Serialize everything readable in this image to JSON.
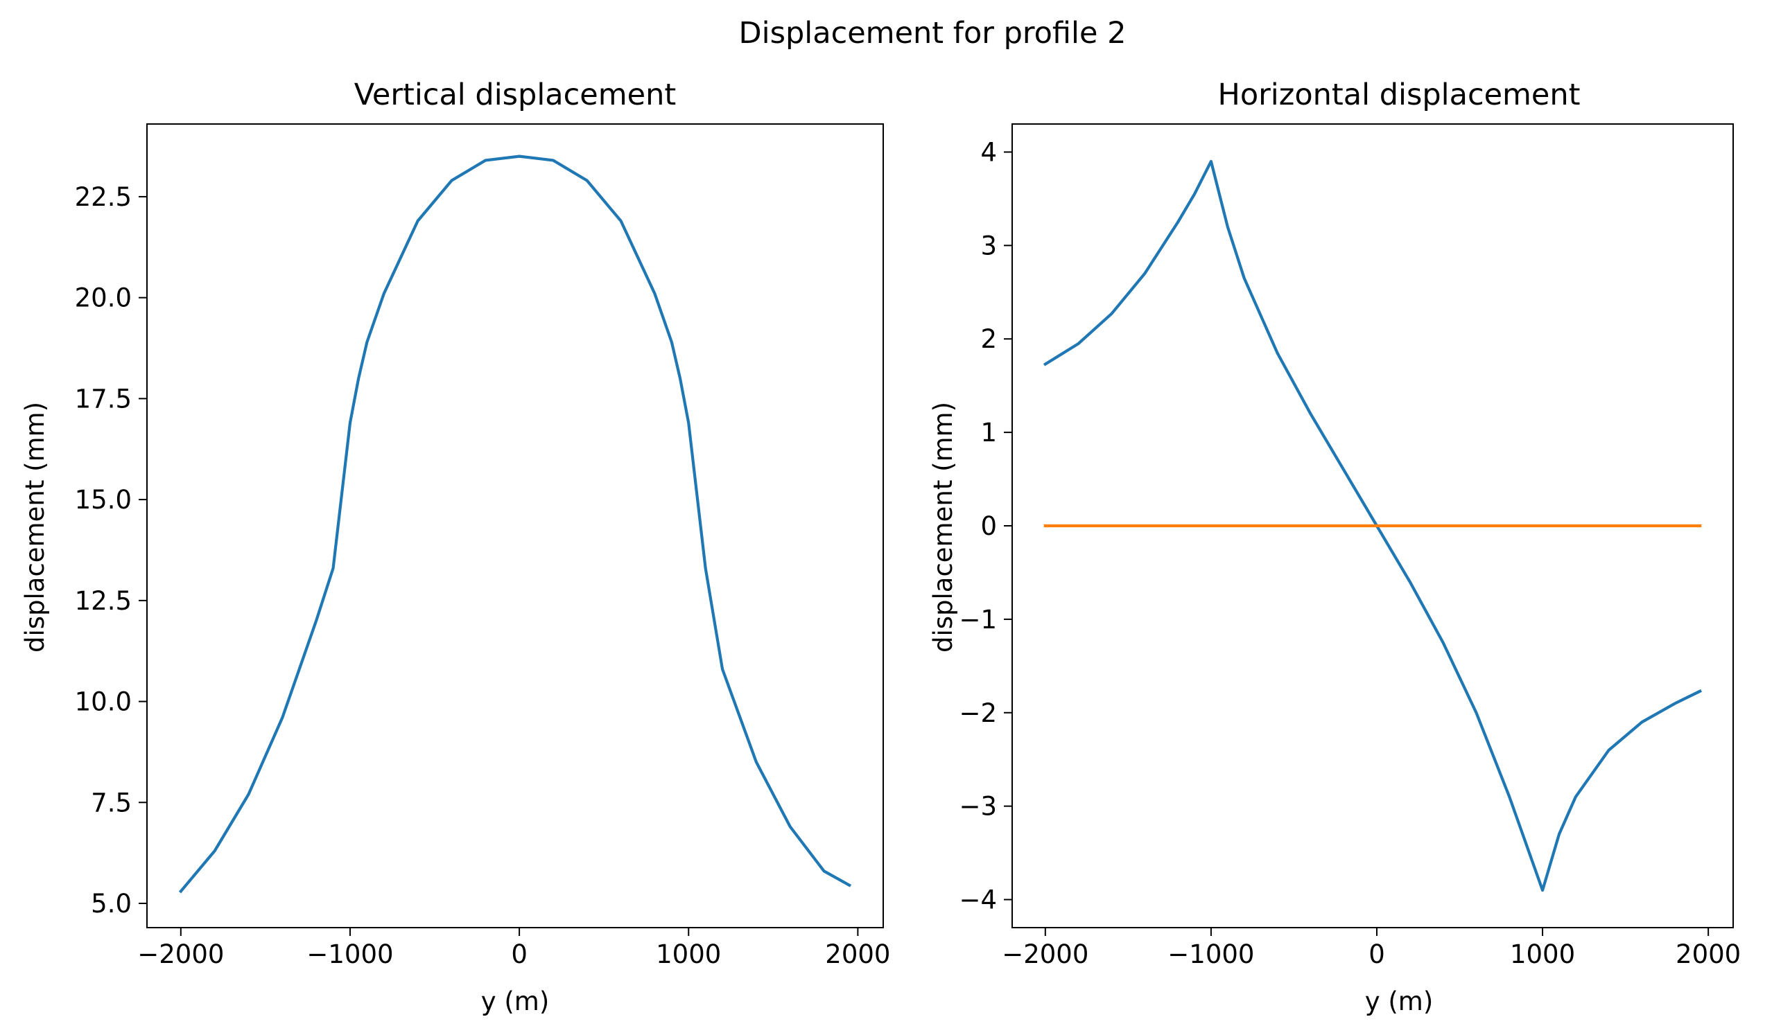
{
  "figure": {
    "suptitle": "Displacement for profile 2"
  },
  "colors": {
    "series_blue": "#1f77b4",
    "series_orange": "#ff7f0e",
    "axes": "#000000",
    "background": "#ffffff"
  },
  "chart_data": [
    {
      "type": "line",
      "title": "Vertical displacement",
      "xlabel": "y (m)",
      "ylabel": "displacement (mm)",
      "xlim": [
        -2200,
        2150
      ],
      "ylim": [
        4.4,
        24.3
      ],
      "xticks": [
        -2000,
        -1000,
        0,
        1000,
        2000
      ],
      "xtick_labels": [
        "−2000",
        "−1000",
        "0",
        "1000",
        "2000"
      ],
      "yticks": [
        5.0,
        7.5,
        10.0,
        12.5,
        15.0,
        17.5,
        20.0,
        22.5
      ],
      "ytick_labels": [
        "5.0",
        "7.5",
        "10.0",
        "12.5",
        "15.0",
        "17.5",
        "20.0",
        "22.5"
      ],
      "grid": false,
      "series": [
        {
          "color": "#1f77b4",
          "x": [
            -2000,
            -1800,
            -1600,
            -1400,
            -1200,
            -1100,
            -1050,
            -1000,
            -950,
            -900,
            -800,
            -600,
            -400,
            -200,
            0,
            200,
            400,
            600,
            800,
            900,
            950,
            1000,
            1050,
            1100,
            1200,
            1400,
            1600,
            1800,
            1950
          ],
          "y": [
            5.3,
            6.3,
            7.7,
            9.6,
            12.0,
            13.3,
            15.1,
            16.9,
            18.0,
            18.9,
            20.1,
            21.9,
            22.9,
            23.4,
            23.5,
            23.4,
            22.9,
            21.9,
            20.1,
            18.9,
            18.0,
            16.9,
            15.1,
            13.3,
            10.8,
            8.5,
            6.9,
            5.8,
            5.45
          ]
        }
      ]
    },
    {
      "type": "line",
      "title": "Horizontal displacement",
      "xlabel": "y (m)",
      "ylabel": "displacement (mm)",
      "xlim": [
        -2200,
        2150
      ],
      "ylim": [
        -4.3,
        4.3
      ],
      "xticks": [
        -2000,
        -1000,
        0,
        1000,
        2000
      ],
      "xtick_labels": [
        "−2000",
        "−1000",
        "0",
        "1000",
        "2000"
      ],
      "yticks": [
        -4,
        -3,
        -2,
        -1,
        0,
        1,
        2,
        3,
        4
      ],
      "ytick_labels": [
        "−4",
        "−3",
        "−2",
        "−1",
        "0",
        "1",
        "2",
        "3",
        "4"
      ],
      "grid": false,
      "series": [
        {
          "color": "#1f77b4",
          "x": [
            -2000,
            -1800,
            -1600,
            -1400,
            -1200,
            -1100,
            -1000,
            -900,
            -800,
            -600,
            -400,
            -200,
            0,
            200,
            400,
            600,
            800,
            900,
            1000,
            1100,
            1200,
            1400,
            1600,
            1800,
            1950
          ],
          "y": [
            1.73,
            1.95,
            2.27,
            2.7,
            3.25,
            3.55,
            3.9,
            3.2,
            2.65,
            1.85,
            1.2,
            0.6,
            0.0,
            -0.6,
            -1.25,
            -2.0,
            -2.9,
            -3.4,
            -3.9,
            -3.3,
            -2.9,
            -2.4,
            -2.1,
            -1.9,
            -1.77
          ]
        },
        {
          "color": "#ff7f0e",
          "x": [
            -2000,
            1950
          ],
          "y": [
            0,
            0
          ]
        }
      ]
    }
  ]
}
